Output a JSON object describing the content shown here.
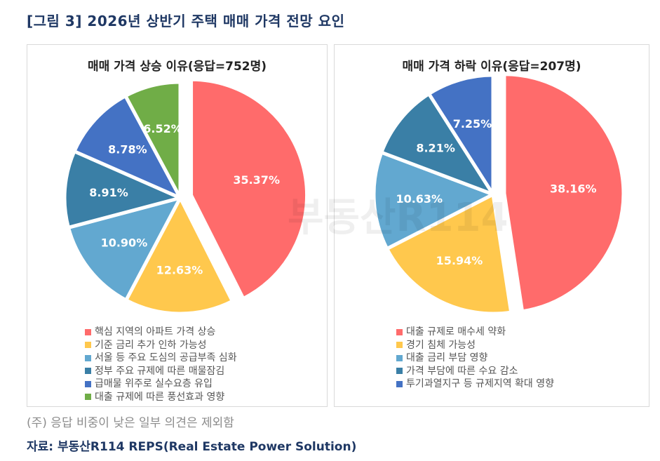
{
  "figure_title": "[그림 3] 2026년 상반기 주택 매매 가격 전망 요인",
  "note": "(주) 응답 비중이 낮은 일부 의견은 제외함",
  "source": "자료: 부동산R114 REPS(Real Estate Power Solution)",
  "watermark": "부동산R114",
  "chart_data": [
    {
      "type": "pie",
      "title": "매매 가격 상승 이유(응답=752명)",
      "respondents": 752,
      "unit": "%",
      "exploded": [
        "핵심 지역의 아파트 가격 상승"
      ],
      "legend_position": "bottom",
      "categories": [
        "핵심 지역의 아파트 가격 상승",
        "기준 금리 추가 인하 가능성",
        "서울 등 주요 도심의 공급부족 심화",
        "정부 주요 규제에 따른 매물잠김",
        "급매물 위주로 실수요층 유입",
        "대출 규제에 따른 풍선효과 영향"
      ],
      "values": [
        35.37,
        12.63,
        10.9,
        8.91,
        8.78,
        6.52
      ],
      "labels": [
        "35.37%",
        "12.63%",
        "10.90%",
        "8.91%",
        "8.78%",
        "6.52%"
      ],
      "colors": [
        "#ff6b6b",
        "#ffc84d",
        "#62a8d0",
        "#3a7fa6",
        "#4472c4",
        "#70ad47"
      ]
    },
    {
      "type": "pie",
      "title": "매매 가격 하락 이유(응답=207명)",
      "respondents": 207,
      "unit": "%",
      "exploded": [
        "대출 규제로 매수세 약화"
      ],
      "legend_position": "bottom",
      "categories": [
        "대출 규제로 매수세 약화",
        "경기 침체 가능성",
        "대출 금리 부담 영향",
        "가격 부담에 따른 수요 감소",
        "투기과열지구 등 규제지역 확대 영향"
      ],
      "values": [
        38.16,
        15.94,
        10.63,
        8.21,
        7.25
      ],
      "labels": [
        "38.16%",
        "15.94%",
        "10.63%",
        "8.21%",
        "7.25%"
      ],
      "colors": [
        "#ff6b6b",
        "#ffc84d",
        "#62a8d0",
        "#3a7fa6",
        "#4472c4"
      ]
    }
  ]
}
